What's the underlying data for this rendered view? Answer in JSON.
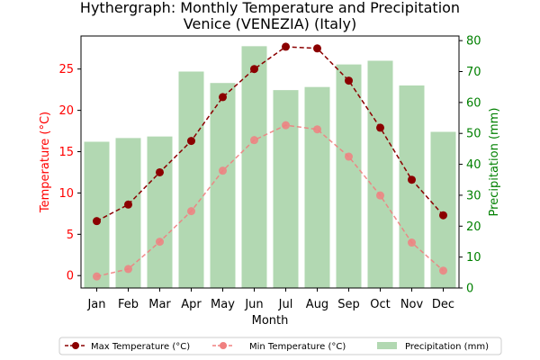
{
  "chart_data": {
    "type": "bar+line",
    "title": "Hythergraph: Monthly Temperature and Precipitation",
    "subtitle": "Venice (VENEZIA) (Italy)",
    "xlabel": "Month",
    "ylabel_left": "Temperature (°C)",
    "ylabel_right": "Precipitation (mm)",
    "categories": [
      "Jan",
      "Feb",
      "Mar",
      "Apr",
      "May",
      "Jun",
      "Jul",
      "Aug",
      "Sep",
      "Oct",
      "Nov",
      "Dec"
    ],
    "ylim_left": [
      -1.5,
      29
    ],
    "ylim_right": [
      0,
      81.5
    ],
    "yticks_left": [
      0,
      5,
      10,
      15,
      20,
      25
    ],
    "yticks_right": [
      0,
      10,
      20,
      30,
      40,
      50,
      60,
      70,
      80
    ],
    "series": [
      {
        "name": "Max Temperature (°C)",
        "axis": "left",
        "kind": "line",
        "color": "#8b0000",
        "values": [
          6.6,
          8.6,
          12.5,
          16.3,
          21.6,
          25.0,
          27.7,
          27.5,
          23.6,
          17.9,
          11.6,
          7.3
        ]
      },
      {
        "name": "Min Temperature (°C)",
        "axis": "left",
        "kind": "line",
        "color": "#f08080",
        "values": [
          -0.1,
          0.8,
          4.1,
          7.8,
          12.7,
          16.4,
          18.2,
          17.7,
          14.4,
          9.7,
          4.0,
          0.6
        ]
      },
      {
        "name": "Precipitation (mm)",
        "axis": "right",
        "kind": "bar",
        "color": "#b2d8b2",
        "values": [
          47.3,
          48.5,
          49.0,
          70.0,
          66.3,
          78.2,
          64.0,
          65.0,
          72.3,
          73.5,
          65.5,
          50.5
        ]
      }
    ],
    "legend_position": "bottom",
    "grid": false
  },
  "colors": {
    "left_axis": "#ff0000",
    "right_axis": "#008000",
    "max_line": "#8b0000",
    "min_line": "#f08080",
    "bars": "#b2d8b2"
  }
}
